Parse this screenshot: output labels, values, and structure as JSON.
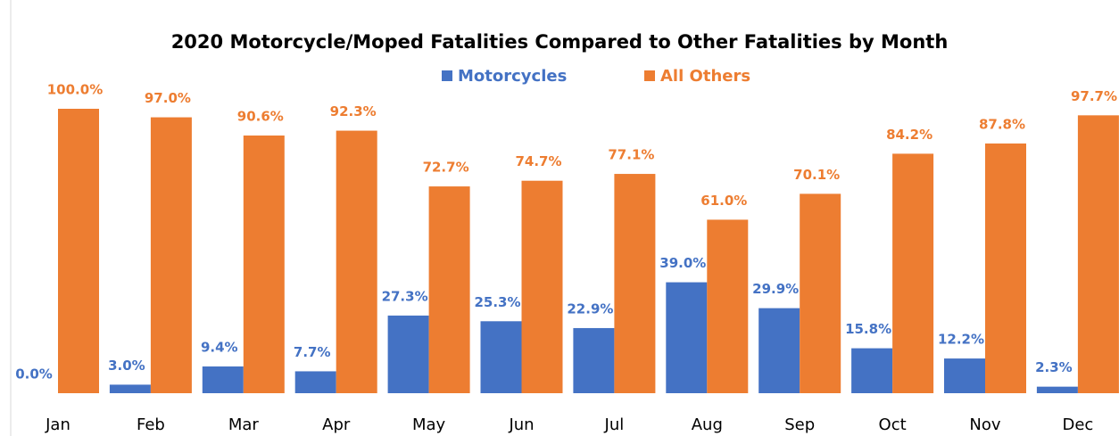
{
  "chart_data": {
    "type": "bar",
    "title": "2020 Motorcycle/Moped Fatalities Compared to Other Fatalities by Month",
    "categories": [
      "Jan",
      "Feb",
      "Mar",
      "Apr",
      "May",
      "Jun",
      "Jul",
      "Aug",
      "Sep",
      "Oct",
      "Nov",
      "Dec"
    ],
    "series": [
      {
        "name": "Motorcycles",
        "color": "#4472c4",
        "values": [
          0.0,
          3.0,
          9.4,
          7.7,
          27.3,
          25.3,
          22.9,
          39.0,
          29.9,
          15.8,
          12.2,
          2.3
        ],
        "value_labels": [
          "0.0%",
          "3.0%",
          "9.4%",
          "7.7%",
          "27.3%",
          "25.3%",
          "22.9%",
          "39.0%",
          "29.9%",
          "15.8%",
          "12.2%",
          "2.3%"
        ]
      },
      {
        "name": "All Others",
        "color": "#ed7d31",
        "values": [
          100.0,
          97.0,
          90.6,
          92.3,
          72.7,
          74.7,
          77.1,
          61.0,
          70.1,
          84.2,
          87.8,
          97.7
        ],
        "value_labels": [
          "100.0%",
          "97.0%",
          "90.6%",
          "92.3%",
          "72.7%",
          "74.7%",
          "77.1%",
          "61.0%",
          "70.1%",
          "84.2%",
          "87.8%",
          "97.7%"
        ]
      }
    ],
    "ylim": [
      0,
      100
    ]
  }
}
